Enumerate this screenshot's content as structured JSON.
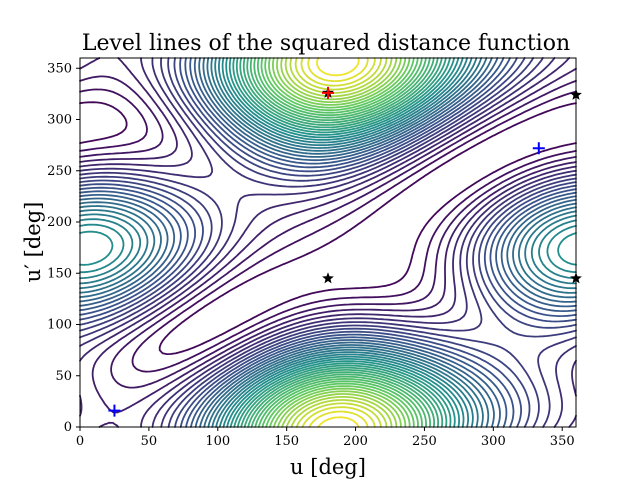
{
  "chart_data": {
    "type": "contour",
    "title": "Level lines of the squared distance function",
    "xlabel": "u [deg]",
    "ylabel": "u′ [deg]",
    "xlim": [
      0,
      360
    ],
    "ylim": [
      0,
      360
    ],
    "xticks": [
      0,
      50,
      100,
      150,
      200,
      250,
      300,
      350
    ],
    "yticks": [
      0,
      50,
      100,
      150,
      200,
      250,
      300,
      350
    ],
    "colormap": [
      "#440154",
      "#3b528b",
      "#21918c",
      "#5ec962",
      "#fde725"
    ],
    "field": {
      "function": "squared distance between points on two ellipses",
      "a1": 1.0,
      "b1": 0.45,
      "a2": 1.3,
      "b2": 0.55,
      "offset_x": 0.35,
      "offset_y": 0.15,
      "tilt_deg": 24,
      "levels": 42
    },
    "markers": {
      "minima": {
        "symbol": "+",
        "color": "#0000ff",
        "points": [
          [
            25,
            16
          ],
          [
            333,
            272
          ]
        ]
      },
      "maximum": {
        "symbol": "+",
        "color": "#ff0000",
        "points": [
          [
            180,
            326
          ]
        ]
      },
      "saddles": {
        "symbol": "★",
        "color": "#000000",
        "points": [
          [
            180,
            326
          ],
          [
            180,
            145
          ],
          [
            360,
            145
          ],
          [
            360,
            324
          ]
        ]
      }
    },
    "grid": false,
    "legend": "none"
  }
}
